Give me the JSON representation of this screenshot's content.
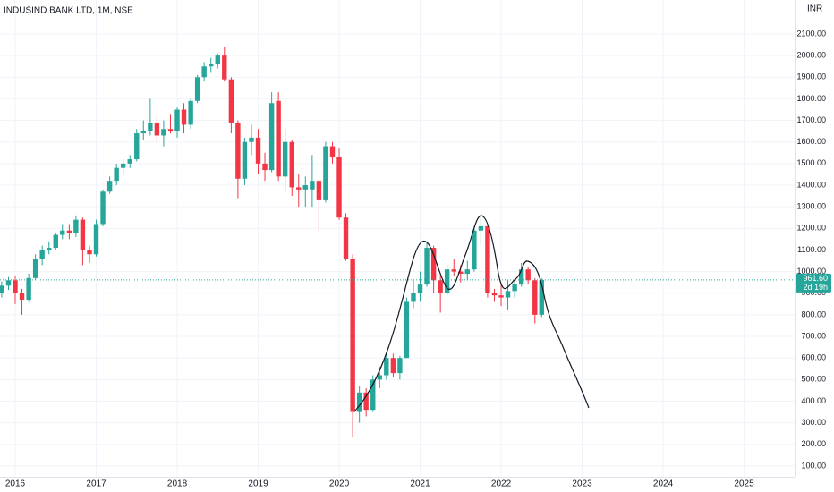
{
  "chart_data": {
    "type": "candlestick",
    "title": "INDUSIND BANK LTD, 1M, NSE",
    "currency": "INR",
    "up_color": "#26a69a",
    "down_color": "#f23645",
    "grid": true,
    "x": [
      2015.833,
      2015.917,
      2016,
      2016.083,
      2016.167,
      2016.25,
      2016.333,
      2016.417,
      2016.5,
      2016.583,
      2016.667,
      2016.75,
      2016.833,
      2016.917,
      2017,
      2017.083,
      2017.167,
      2017.25,
      2017.333,
      2017.417,
      2017.5,
      2017.583,
      2017.667,
      2017.75,
      2017.833,
      2017.917,
      2018,
      2018.083,
      2018.167,
      2018.25,
      2018.333,
      2018.417,
      2018.5,
      2018.583,
      2018.667,
      2018.75,
      2018.833,
      2018.917,
      2019,
      2019.083,
      2019.167,
      2019.25,
      2019.333,
      2019.417,
      2019.5,
      2019.583,
      2019.667,
      2019.75,
      2019.833,
      2019.917,
      2020,
      2020.083,
      2020.167,
      2020.25,
      2020.333,
      2020.417,
      2020.5,
      2020.583,
      2020.667,
      2020.75,
      2020.833,
      2020.917,
      2021,
      2021.083,
      2021.167,
      2021.25,
      2021.333,
      2021.417,
      2021.5,
      2021.583,
      2021.667,
      2021.75,
      2021.833,
      2021.917,
      2022,
      2022.083,
      2022.167,
      2022.25,
      2022.333,
      2022.417,
      2022.5
    ],
    "open": [
      900,
      935,
      960,
      900,
      870,
      970,
      1060,
      1100,
      1110,
      1170,
      1190,
      1180,
      1240,
      1100,
      1080,
      1220,
      1370,
      1420,
      1480,
      1500,
      1520,
      1640,
      1650,
      1690,
      1630,
      1660,
      1650,
      1750,
      1680,
      1790,
      1900,
      1950,
      1960,
      2000,
      1890,
      1690,
      1430,
      1600,
      1620,
      1500,
      1470,
      1790,
      1440,
      1600,
      1390,
      1380,
      1380,
      1420,
      1330,
      1580,
      1530,
      1250,
      1060,
      350,
      440,
      360,
      500,
      520,
      600,
      530,
      600,
      860,
      900,
      940,
      1110,
      960,
      900,
      1010,
      1000,
      990,
      1010,
      1190,
      1210,
      900,
      890,
      880,
      910,
      940,
      1010,
      960,
      800
    ],
    "high": [
      955,
      975,
      980,
      920,
      990,
      1080,
      1120,
      1140,
      1180,
      1220,
      1220,
      1260,
      1250,
      1120,
      1240,
      1380,
      1440,
      1500,
      1520,
      1540,
      1660,
      1700,
      1800,
      1720,
      1700,
      1730,
      1760,
      1780,
      1800,
      1910,
      1970,
      1990,
      2010,
      2040,
      1900,
      1700,
      1620,
      1680,
      1660,
      1550,
      1830,
      1830,
      1660,
      1610,
      1450,
      1440,
      1540,
      1430,
      1600,
      1600,
      1570,
      1270,
      1080,
      470,
      460,
      520,
      560,
      630,
      620,
      610,
      880,
      960,
      1000,
      1140,
      1120,
      980,
      1030,
      1060,
      1030,
      1050,
      1210,
      1250,
      1220,
      920,
      950,
      960,
      960,
      1040,
      1020,
      970,
      970
    ],
    "low": [
      880,
      915,
      850,
      800,
      860,
      960,
      1030,
      1080,
      1100,
      1150,
      1150,
      1160,
      1030,
      1040,
      1070,
      1210,
      1360,
      1400,
      1450,
      1480,
      1510,
      1610,
      1630,
      1600,
      1580,
      1640,
      1620,
      1640,
      1660,
      1780,
      1880,
      1920,
      1940,
      1880,
      1640,
      1340,
      1400,
      1540,
      1450,
      1420,
      1460,
      1420,
      1370,
      1350,
      1300,
      1300,
      1300,
      1190,
      1320,
      1500,
      1240,
      1050,
      235,
      300,
      330,
      350,
      460,
      500,
      510,
      500,
      600,
      830,
      860,
      930,
      900,
      810,
      890,
      980,
      950,
      960,
      1000,
      1120,
      880,
      860,
      840,
      820,
      880,
      930,
      940,
      760,
      790
    ],
    "close": [
      935,
      960,
      900,
      870,
      970,
      1060,
      1100,
      1110,
      1170,
      1190,
      1180,
      1240,
      1100,
      1080,
      1220,
      1370,
      1420,
      1480,
      1500,
      1520,
      1640,
      1650,
      1690,
      1630,
      1660,
      1650,
      1750,
      1680,
      1790,
      1900,
      1950,
      1960,
      2000,
      1890,
      1690,
      1430,
      1600,
      1620,
      1500,
      1470,
      1780,
      1440,
      1600,
      1390,
      1380,
      1400,
      1420,
      1330,
      1580,
      1530,
      1250,
      1060,
      350,
      440,
      360,
      500,
      520,
      600,
      530,
      600,
      860,
      900,
      940,
      1110,
      960,
      900,
      1010,
      1000,
      990,
      1010,
      1190,
      1210,
      900,
      890,
      880,
      910,
      940,
      1010,
      960,
      800,
      961.6
    ],
    "xlim": [
      2015.812,
      2025.624
    ],
    "xticks": [
      2016,
      2017,
      2018,
      2019,
      2020,
      2021,
      2022,
      2023,
      2024,
      2025
    ],
    "ylim": [
      50,
      2257.3
    ],
    "yticks": [
      {
        "value": 100,
        "label": "100.00"
      },
      {
        "value": 200,
        "label": "200.00"
      },
      {
        "value": 300,
        "label": "300.00"
      },
      {
        "value": 400,
        "label": "400.00"
      },
      {
        "value": 500,
        "label": "500.00"
      },
      {
        "value": 600,
        "label": "600.00"
      },
      {
        "value": 700,
        "label": "700.00"
      },
      {
        "value": 800,
        "label": "800.00"
      },
      {
        "value": 900,
        "label": "900.00"
      },
      {
        "value": 1000,
        "label": "1000.00"
      },
      {
        "value": 1100,
        "label": "1100.00"
      },
      {
        "value": 1200,
        "label": "1200.00"
      },
      {
        "value": 1300,
        "label": "1300.00"
      },
      {
        "value": 1400,
        "label": "1400.00"
      },
      {
        "value": 1500,
        "label": "1500.00"
      },
      {
        "value": 1600,
        "label": "1600.00"
      },
      {
        "value": 1700,
        "label": "1700.00"
      },
      {
        "value": 1800,
        "label": "1800.00"
      },
      {
        "value": 1900,
        "label": "1900.00"
      },
      {
        "value": 2000,
        "label": "2000.00"
      },
      {
        "value": 2100,
        "label": "2100.00"
      }
    ],
    "last_price": {
      "value": 961.6,
      "label": "961.60"
    },
    "countdown": "2d 19h"
  }
}
